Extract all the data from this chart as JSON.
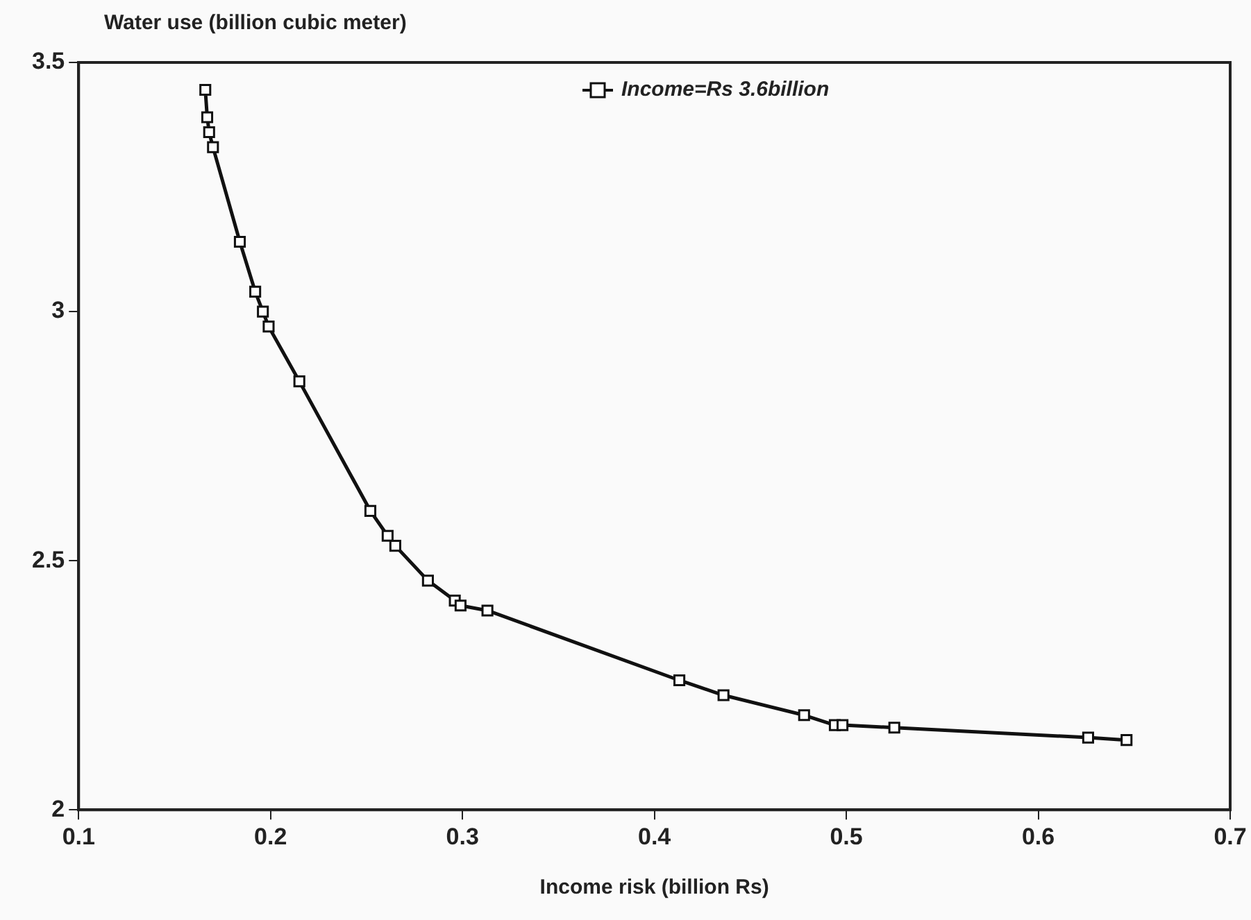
{
  "chart_data": {
    "type": "line",
    "xlabel": "Income risk (billion Rs)",
    "ylabel": "Water use (billion cubic meter)",
    "xlim": [
      0.1,
      0.7
    ],
    "xticks": [
      0.1,
      0.2,
      0.3,
      0.4,
      0.5,
      0.6,
      0.7
    ],
    "ylim": [
      2,
      3.5
    ],
    "yticks": [
      2,
      2.5,
      3,
      3.5
    ],
    "grid": false,
    "legend": "top",
    "marker": "square",
    "line_style": "solid",
    "series": [
      {
        "name": "Income=Rs 3.6billion",
        "color": "#111111",
        "x": [
          0.166,
          0.167,
          0.168,
          0.17,
          0.184,
          0.192,
          0.196,
          0.199,
          0.215,
          0.252,
          0.261,
          0.265,
          0.282,
          0.296,
          0.299,
          0.313,
          0.413,
          0.436,
          0.478,
          0.494,
          0.498,
          0.525,
          0.626,
          0.646
        ],
        "values": [
          3.445,
          3.39,
          3.36,
          3.33,
          3.14,
          3.04,
          3.0,
          2.97,
          2.86,
          2.6,
          2.55,
          2.53,
          2.46,
          2.42,
          2.41,
          2.4,
          2.26,
          2.23,
          2.19,
          2.17,
          2.17,
          2.165,
          2.145,
          2.14
        ]
      }
    ]
  }
}
